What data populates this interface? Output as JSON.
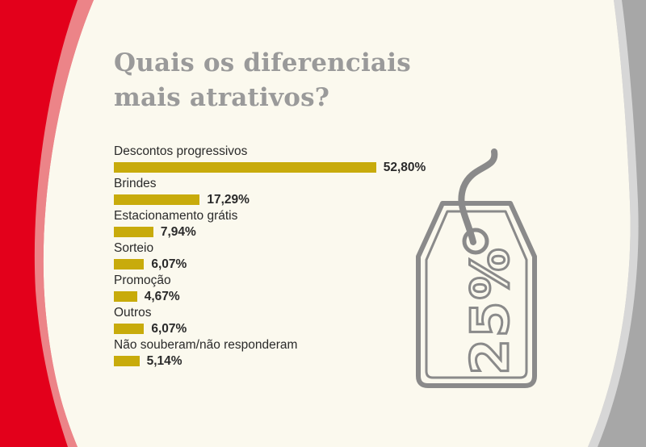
{
  "colors": {
    "background": "#fbf9ee",
    "bar": "#c8ab0b",
    "red_band": "#e3001b",
    "grey_band": "#a7a7a7",
    "title": "#9a9a9a",
    "text": "#2a2a2a"
  },
  "decoration": {
    "tag_icon": "price-tag-icon",
    "tag_text": "25%"
  },
  "chart_data": {
    "type": "bar",
    "orientation": "horizontal",
    "title_lines": [
      "Quais os diferenciais",
      "mais atrativos?"
    ],
    "categories": [
      "Descontos progressivos",
      "Brindes",
      "Estacionamento grátis",
      "Sorteio",
      "Promoção",
      "Outros",
      "Não souberam/não responderam"
    ],
    "values": [
      52.8,
      17.29,
      7.94,
      6.07,
      4.67,
      6.07,
      5.14
    ],
    "value_labels": [
      "52,80%",
      "17,29%",
      "7,94%",
      "6,07%",
      "4,67%",
      "6,07%",
      "5,14%"
    ],
    "unit": "%",
    "grid": false,
    "legend": "none"
  }
}
